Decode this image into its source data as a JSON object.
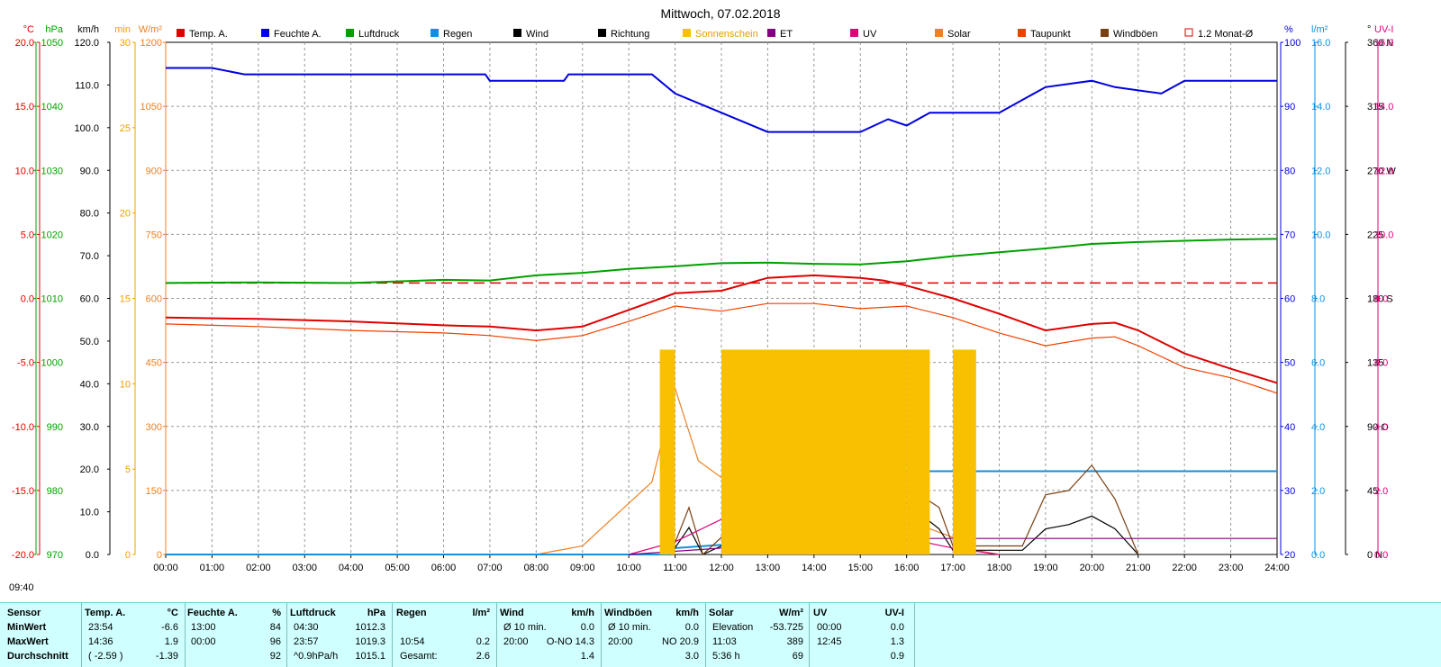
{
  "title": "Mittwoch, 07.02.2018",
  "time_label": "09:40",
  "left_axes": [
    {
      "unit": "°C",
      "color": "#e00000",
      "ticks": [
        "20.0",
        "15.0",
        "10.0",
        "5.0",
        "0.0",
        "-5.0",
        "-10.0",
        "-15.0",
        "-20.0"
      ]
    },
    {
      "unit": "hPa",
      "color": "#00a000",
      "ticks": [
        "1050",
        "1040",
        "1030",
        "1020",
        "1010",
        "1000",
        "990",
        "980",
        "970"
      ]
    },
    {
      "unit": "km/h",
      "color": "#000000",
      "ticks": [
        "120.0",
        "110.0",
        "100.0",
        "90.0",
        "80.0",
        "70.0",
        "60.0",
        "50.0",
        "40.0",
        "30.0",
        "20.0",
        "10.0",
        "0.0"
      ]
    },
    {
      "unit": "min",
      "color": "#f0a000",
      "ticks": [
        "30",
        "25",
        "20",
        "15",
        "10",
        "5",
        "0"
      ]
    },
    {
      "unit": "W/m²",
      "color": "#f08020",
      "ticks": [
        "1200",
        "1050",
        "900",
        "750",
        "600",
        "450",
        "300",
        "150",
        "0"
      ]
    }
  ],
  "right_axes": [
    {
      "unit": "%",
      "color": "#0000e0",
      "ticks": [
        "100",
        "90",
        "80",
        "70",
        "60",
        "50",
        "40",
        "30",
        "20"
      ]
    },
    {
      "unit": "l/m²",
      "color": "#1090e0",
      "ticks": [
        "16.0",
        "14.0",
        "12.0",
        "10.0",
        "8.0",
        "6.0",
        "4.0",
        "2.0",
        "0.0"
      ]
    },
    {
      "unit": "°",
      "color": "#000000",
      "ticks": [
        "360 N",
        "315",
        "270 W",
        "225",
        "180 S",
        "135",
        "90 O",
        "45",
        "0 N"
      ]
    },
    {
      "unit": "UV-I",
      "color": "#e0007a",
      "ticks": [
        "16.0",
        "14.0",
        "12.0",
        "10.0",
        "8.0",
        "6.0",
        "4.0",
        "2.0",
        "0.0"
      ]
    }
  ],
  "legend": [
    {
      "label": "Temp. A.",
      "color": "#e00000",
      "style": "box"
    },
    {
      "label": "Feuchte A.",
      "color": "#0000e0",
      "style": "box"
    },
    {
      "label": "Luftdruck",
      "color": "#00a000",
      "style": "box"
    },
    {
      "label": "Regen",
      "color": "#1090e0",
      "style": "box"
    },
    {
      "label": "Wind",
      "color": "#000000",
      "style": "box"
    },
    {
      "label": "Richtung",
      "color": "#000000",
      "style": "box"
    },
    {
      "label": "Sonnenschein",
      "color": "#f8c000",
      "style": "box"
    },
    {
      "label": "ET",
      "color": "#800080",
      "style": "box"
    },
    {
      "label": "UV",
      "color": "#e0007a",
      "style": "box"
    },
    {
      "label": "Solar",
      "color": "#f08020",
      "style": "box"
    },
    {
      "label": "Taupunkt",
      "color": "#f04000",
      "style": "box"
    },
    {
      "label": "Windböen",
      "color": "#7a4010",
      "style": "box"
    },
    {
      "label": "1.2 Monat-Ø",
      "color": "#e00000",
      "style": "open"
    }
  ],
  "chart_data": {
    "type": "line",
    "x_ticks": [
      "00:00",
      "01:00",
      "02:00",
      "03:00",
      "04:00",
      "05:00",
      "06:00",
      "07:00",
      "08:00",
      "09:00",
      "10:00",
      "11:00",
      "12:00",
      "13:00",
      "14:00",
      "15:00",
      "16:00",
      "17:00",
      "18:00",
      "19:00",
      "20:00",
      "21:00",
      "22:00",
      "23:00",
      "24:00"
    ],
    "x_unit": "hours",
    "temperature_ref_line": 1.2,
    "series": [
      {
        "name": "Temp. A.",
        "unit": "°C",
        "color": "#e00000",
        "points": [
          [
            0,
            -1.5
          ],
          [
            2,
            -1.6
          ],
          [
            4,
            -1.8
          ],
          [
            6,
            -2.1
          ],
          [
            7,
            -2.2
          ],
          [
            8,
            -2.5
          ],
          [
            9,
            -2.2
          ],
          [
            10,
            -0.9
          ],
          [
            11,
            0.4
          ],
          [
            12,
            0.6
          ],
          [
            13,
            1.6
          ],
          [
            14,
            1.8
          ],
          [
            15,
            1.6
          ],
          [
            15.5,
            1.4
          ],
          [
            16,
            1.0
          ],
          [
            17,
            0.0
          ],
          [
            18,
            -1.2
          ],
          [
            19,
            -2.5
          ],
          [
            20,
            -2.0
          ],
          [
            20.5,
            -1.9
          ],
          [
            21,
            -2.5
          ],
          [
            22,
            -4.3
          ],
          [
            23,
            -5.5
          ],
          [
            24,
            -6.6
          ]
        ]
      },
      {
        "name": "Taupunkt",
        "unit": "°C",
        "color": "#f04000",
        "points": [
          [
            0,
            -2.0
          ],
          [
            2,
            -2.2
          ],
          [
            4,
            -2.5
          ],
          [
            6,
            -2.7
          ],
          [
            7,
            -2.9
          ],
          [
            8,
            -3.3
          ],
          [
            9,
            -2.9
          ],
          [
            10,
            -1.8
          ],
          [
            11,
            -0.6
          ],
          [
            12,
            -1.0
          ],
          [
            13,
            -0.4
          ],
          [
            14,
            -0.4
          ],
          [
            15,
            -0.8
          ],
          [
            16,
            -0.6
          ],
          [
            17,
            -1.5
          ],
          [
            18,
            -2.7
          ],
          [
            19,
            -3.7
          ],
          [
            20,
            -3.1
          ],
          [
            20.5,
            -3.0
          ],
          [
            21,
            -3.7
          ],
          [
            22,
            -5.4
          ],
          [
            23,
            -6.2
          ],
          [
            24,
            -7.4
          ]
        ]
      },
      {
        "name": "Feuchte A.",
        "unit": "%",
        "color": "#0000e0",
        "points": [
          [
            0,
            96
          ],
          [
            1,
            96
          ],
          [
            1.7,
            95
          ],
          [
            6.9,
            95
          ],
          [
            7,
            94
          ],
          [
            8.6,
            94
          ],
          [
            8.7,
            95
          ],
          [
            10.5,
            95
          ],
          [
            11,
            92
          ],
          [
            12,
            89
          ],
          [
            13,
            86
          ],
          [
            14,
            86
          ],
          [
            15,
            86
          ],
          [
            15.6,
            88
          ],
          [
            16,
            87
          ],
          [
            16.5,
            89
          ],
          [
            18,
            89
          ],
          [
            19,
            93
          ],
          [
            20,
            94
          ],
          [
            20.5,
            93
          ],
          [
            21.5,
            92
          ],
          [
            22,
            94
          ],
          [
            23,
            94
          ],
          [
            24,
            94
          ]
        ]
      },
      {
        "name": "Luftdruck",
        "unit": "hPa",
        "color": "#00a000",
        "points": [
          [
            0,
            1012.4
          ],
          [
            2,
            1012.5
          ],
          [
            4,
            1012.4
          ],
          [
            6,
            1012.9
          ],
          [
            7,
            1012.8
          ],
          [
            8,
            1013.6
          ],
          [
            9,
            1014.0
          ],
          [
            10,
            1014.6
          ],
          [
            11,
            1015.0
          ],
          [
            12,
            1015.5
          ],
          [
            13,
            1015.6
          ],
          [
            14,
            1015.4
          ],
          [
            15,
            1015.3
          ],
          [
            16,
            1015.8
          ],
          [
            17,
            1016.6
          ],
          [
            18,
            1017.2
          ],
          [
            19,
            1017.8
          ],
          [
            20,
            1018.5
          ],
          [
            21,
            1018.8
          ],
          [
            22,
            1019.0
          ],
          [
            23,
            1019.2
          ],
          [
            24,
            1019.3
          ]
        ]
      },
      {
        "name": "Solar",
        "unit": "W/m²",
        "color": "#f08020",
        "points": [
          [
            8.0,
            0
          ],
          [
            9,
            20
          ],
          [
            10,
            120
          ],
          [
            10.5,
            170
          ],
          [
            11,
            389
          ],
          [
            11.5,
            220
          ],
          [
            12,
            180
          ],
          [
            12.5,
            320
          ],
          [
            13,
            360
          ],
          [
            13.5,
            260
          ],
          [
            14,
            330
          ],
          [
            14.5,
            240
          ],
          [
            15,
            170
          ],
          [
            15.5,
            310
          ],
          [
            16,
            90
          ],
          [
            16.5,
            60
          ],
          [
            17,
            40
          ],
          [
            17.5,
            10
          ],
          [
            18,
            0
          ]
        ]
      },
      {
        "name": "Regen",
        "unit": "l/m²",
        "color": "#1090e0",
        "points": [
          [
            0,
            0
          ],
          [
            10.9,
            0
          ],
          [
            11,
            0.2
          ],
          [
            12,
            0.3
          ],
          [
            13,
            1.0
          ],
          [
            14,
            1.6
          ],
          [
            15,
            2.2
          ],
          [
            15.8,
            2.6
          ],
          [
            24,
            2.6
          ]
        ]
      },
      {
        "name": "Wind",
        "unit": "km/h",
        "color": "#000000",
        "points": [
          [
            10.9,
            0
          ],
          [
            11.3,
            6.3
          ],
          [
            11.6,
            0
          ],
          [
            12,
            2
          ],
          [
            13,
            8
          ],
          [
            13.6,
            11
          ],
          [
            14,
            5
          ],
          [
            14.5,
            9
          ],
          [
            15,
            7
          ],
          [
            15.5,
            10
          ],
          [
            16,
            12
          ],
          [
            16.7,
            6
          ],
          [
            17,
            1
          ],
          [
            18.5,
            1
          ],
          [
            19,
            6
          ],
          [
            19.5,
            7
          ],
          [
            20,
            9
          ],
          [
            20.5,
            6
          ],
          [
            21,
            0
          ]
        ]
      },
      {
        "name": "Windböen",
        "unit": "km/h",
        "color": "#7a4010",
        "points": [
          [
            10.9,
            0
          ],
          [
            11.3,
            11
          ],
          [
            11.6,
            0
          ],
          [
            12,
            4
          ],
          [
            13,
            12
          ],
          [
            13.6,
            14
          ],
          [
            14,
            9
          ],
          [
            14.5,
            13
          ],
          [
            15,
            11
          ],
          [
            15.5,
            14
          ],
          [
            16,
            16
          ],
          [
            16.7,
            11
          ],
          [
            17,
            2
          ],
          [
            18.5,
            2
          ],
          [
            19,
            14
          ],
          [
            19.5,
            15
          ],
          [
            20,
            20.9
          ],
          [
            20.5,
            13
          ],
          [
            21,
            0
          ]
        ]
      },
      {
        "name": "UV",
        "unit": "UV-I",
        "color": "#e0007a",
        "points": [
          [
            10,
            0
          ],
          [
            11,
            0.4
          ],
          [
            12,
            1.1
          ],
          [
            12.75,
            1.3
          ],
          [
            14,
            1.2
          ],
          [
            15,
            0.8
          ],
          [
            16,
            0.5
          ],
          [
            17,
            0.2
          ],
          [
            18,
            0
          ]
        ]
      },
      {
        "name": "ET",
        "unit": "l/m²",
        "color": "#800080",
        "points": [
          [
            10,
            0
          ],
          [
            12,
            0.2
          ],
          [
            14,
            0.4
          ],
          [
            16,
            0.5
          ],
          [
            17,
            0.5
          ],
          [
            24,
            0.5
          ]
        ]
      },
      {
        "name": "Sonnenschein",
        "unit": "min",
        "color": "#f8c000",
        "bars": [
          [
            10.67,
            11.0
          ],
          [
            12.0,
            16.0
          ],
          [
            16.0,
            16.5
          ],
          [
            17.0,
            17.5
          ]
        ]
      }
    ]
  },
  "stats": {
    "sensor": {
      "title": "Sensor",
      "rows": [
        "MinWert",
        "MaxWert",
        "Durchschnitt"
      ]
    },
    "temp": {
      "title": "Temp. A.",
      "unit": "°C",
      "rows": [
        [
          "23:54",
          "-6.6"
        ],
        [
          "14:36",
          "1.9"
        ],
        [
          "( -2.59 )",
          "-1.39"
        ]
      ]
    },
    "feuchte": {
      "title": "Feuchte A.",
      "unit": "%",
      "rows": [
        [
          "13:00",
          "84"
        ],
        [
          "00:00",
          "96"
        ],
        [
          "",
          "92"
        ]
      ]
    },
    "luftdruck": {
      "title": "Luftdruck",
      "unit": "hPa",
      "rows": [
        [
          "04:30",
          "1012.3"
        ],
        [
          "23:57",
          "1019.3"
        ],
        [
          "^0.9hPa/h",
          "1015.1"
        ]
      ]
    },
    "regen": {
      "title": "Regen",
      "unit": "l/m²",
      "rows": [
        [
          "",
          ""
        ],
        [
          "10:54",
          "0.2"
        ],
        [
          "Gesamt:",
          "2.6"
        ]
      ]
    },
    "wind": {
      "title": "Wind",
      "unit": "km/h",
      "rows": [
        [
          "Ø 10 min.",
          "0.0"
        ],
        [
          "20:00",
          "O-NO 14.3"
        ],
        [
          "",
          "1.4"
        ]
      ]
    },
    "windboen": {
      "title": "Windböen",
      "unit": "km/h",
      "rows": [
        [
          "Ø 10 min.",
          "0.0"
        ],
        [
          "20:00",
          "NO 20.9"
        ],
        [
          "",
          "3.0"
        ]
      ]
    },
    "solar": {
      "title": "Solar",
      "unit": "W/m²",
      "rows": [
        [
          "Elevation",
          "-53.725"
        ],
        [
          "11:03",
          "389"
        ],
        [
          "5:36 h",
          "69"
        ]
      ]
    },
    "uv": {
      "title": "UV",
      "unit": "UV-I",
      "rows": [
        [
          "00:00",
          "0.0"
        ],
        [
          "12:45",
          "1.3"
        ],
        [
          "",
          "0.9"
        ]
      ]
    }
  }
}
